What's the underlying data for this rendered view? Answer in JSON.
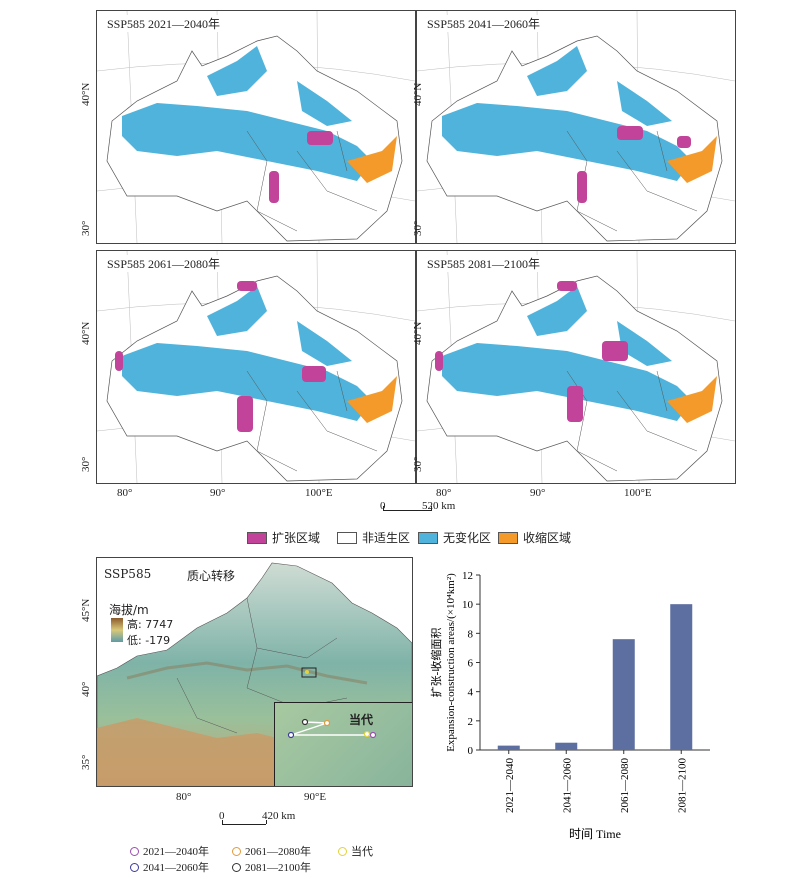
{
  "map_panels": [
    {
      "title": "SSP585 2021—2040年"
    },
    {
      "title": "SSP585 2041—2060年"
    },
    {
      "title": "SSP585 2061—2080年"
    },
    {
      "title": "SSP585 2081—2100年"
    }
  ],
  "lat_labels": [
    "40°N",
    "30°"
  ],
  "lon_labels": [
    "80°",
    "90°",
    "100°E"
  ],
  "scalebar": {
    "start": "0",
    "end": "520 km"
  },
  "legend": [
    {
      "label": "扩张区域",
      "color": "#c2449a"
    },
    {
      "label": "非适生区",
      "color": "#ffffff"
    },
    {
      "label": "无变化区",
      "color": "#4fb3db"
    },
    {
      "label": "收缩区域",
      "color": "#f39a2b"
    }
  ],
  "centroid_map": {
    "label": "SSP585",
    "title": "质心转移",
    "elevation_title": "海拔/m",
    "elev_high": "高: 7747",
    "elev_low": "低: -179",
    "inset_label": "当代",
    "lat_labels": [
      "45°N",
      "40°",
      "35°"
    ],
    "lon_labels": [
      "80°",
      "90°E"
    ],
    "scalebar": {
      "start": "0",
      "end": "420 km"
    }
  },
  "centroid_legend": [
    {
      "label": "2021—2040年",
      "color": "#9a4fb0"
    },
    {
      "label": "2061—2080年",
      "color": "#e39a3b"
    },
    {
      "label": "当代",
      "color": "#e3d23b"
    },
    {
      "label": "2041—2060年",
      "color": "#3b3b9a"
    },
    {
      "label": "2081—2100年",
      "color": "#333333"
    }
  ],
  "chart_data": {
    "type": "bar",
    "categories": [
      "2021—2040",
      "2041—2060",
      "2061—2080",
      "2081—2100"
    ],
    "values": [
      0.3,
      0.5,
      7.6,
      10.0
    ],
    "ylabel_cn": "扩张-收缩面积",
    "ylabel_en": "Expansion-construction areas/(×10⁴km²)",
    "xlabel": "时间 Time",
    "ylim": [
      0,
      12
    ],
    "yticks": [
      0,
      2,
      4,
      6,
      8,
      10,
      12
    ],
    "bar_color": "#5d6fa0"
  }
}
